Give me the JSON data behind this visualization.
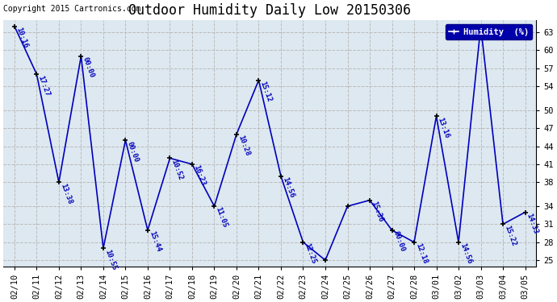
{
  "title": "Outdoor Humidity Daily Low 20150306",
  "copyright": "Copyright 2015 Cartronics.com",
  "legend_label": "Humidity  (%)",
  "background_color": "#ffffff",
  "plot_bg_color": "#dde8f0",
  "line_color": "#0000bb",
  "line_width": 1.2,
  "dates": [
    "02/10",
    "02/11",
    "02/12",
    "02/13",
    "02/14",
    "02/15",
    "02/16",
    "02/17",
    "02/18",
    "02/19",
    "02/20",
    "02/21",
    "02/22",
    "02/23",
    "02/24",
    "02/25",
    "02/26",
    "02/27",
    "02/28",
    "03/01",
    "03/02",
    "03/03",
    "03/04",
    "03/05"
  ],
  "values": [
    64,
    56,
    38,
    59,
    27,
    45,
    30,
    42,
    41,
    34,
    46,
    55,
    39,
    28,
    25,
    34,
    35,
    30,
    28,
    49,
    28,
    64,
    31,
    33
  ],
  "time_labels": [
    "10:16",
    "17:27",
    "13:38",
    "00:00",
    "10:55",
    "00:00",
    "15:44",
    "10:52",
    "16:23",
    "11:05",
    "10:28",
    "15:12",
    "14:56",
    "12:25",
    "",
    "",
    "15:36",
    "00:00",
    "12:18",
    "13:16",
    "14:56",
    "",
    "15:22",
    "14:33"
  ],
  "yticks": [
    25,
    28,
    31,
    34,
    38,
    41,
    44,
    47,
    50,
    54,
    57,
    60,
    63
  ],
  "ylim": [
    24.0,
    65.0
  ],
  "grid_color": "#bbbbbb",
  "legend_bg": "#0000aa",
  "legend_text_color": "#ffffff",
  "title_fontsize": 12,
  "annotation_fontsize": 6.5,
  "tick_fontsize": 7.5,
  "copyright_fontsize": 7
}
